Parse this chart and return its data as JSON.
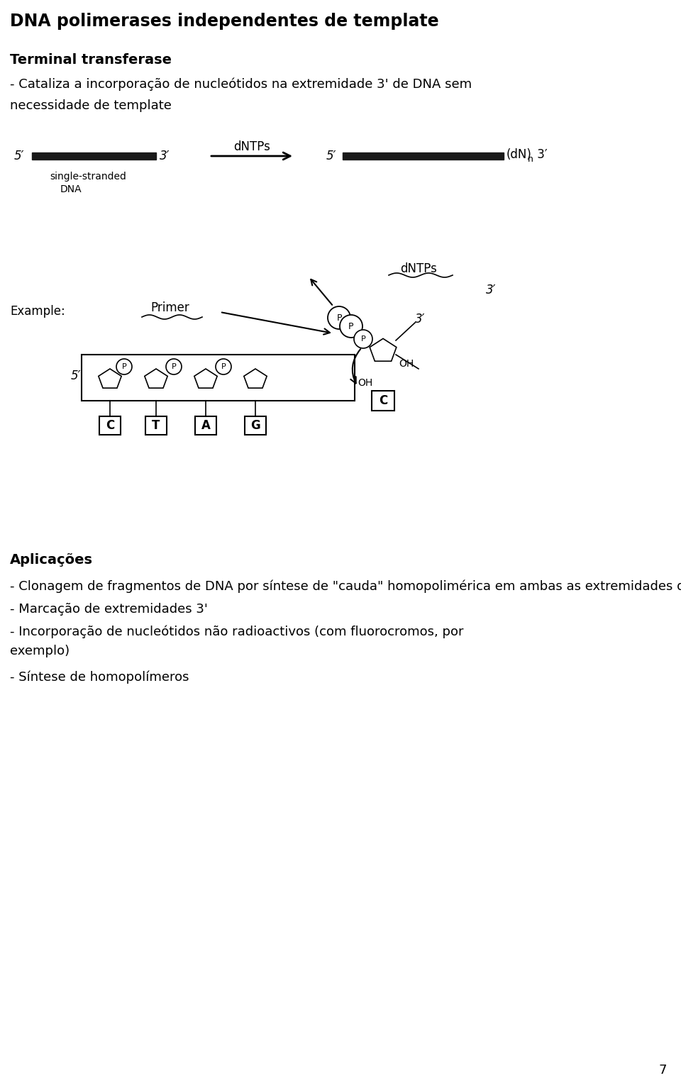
{
  "title": "DNA polimerases independentes de template",
  "subtitle_bold": "Terminal transferase",
  "desc_line1": "- Cataliza a incorporação de nucleótidos na extremidade 3' de DNA sem",
  "desc_line2": "necessidade de template",
  "diagram1_label_left": "5′",
  "diagram1_label_right": "3′",
  "diagram1_arrow_label": "dNTPs",
  "diagram2_label_left": "5′",
  "diagram2_suffix": "(dN)",
  "diagram2_n": "n",
  "diagram2_end": " 3′",
  "example_label": "Example:",
  "primer_label": "Primer",
  "dntp_label2": "dNTPs",
  "five_prime": "5′",
  "three_prime": "3′",
  "oh_label": "OH",
  "bases": [
    "C",
    "T",
    "A",
    "G"
  ],
  "base_incoming": "C",
  "applications_title": "Aplicações",
  "app_lines": [
    "- Clonagem de fragmentos de DNA por síntese de \"cauda\" homopolimérica em ambas as extremidades do fragmento de DNA",
    "- Marcação de extremidades 3'",
    "- Incorporação de nucleótidos não radioactivos (com fluorocromos, por\nexemplo)",
    "- Síntese de homopolímeros"
  ],
  "page_number": "7",
  "bg_color": "#ffffff",
  "text_color": "#000000",
  "bar_color": "#1a1a1a"
}
